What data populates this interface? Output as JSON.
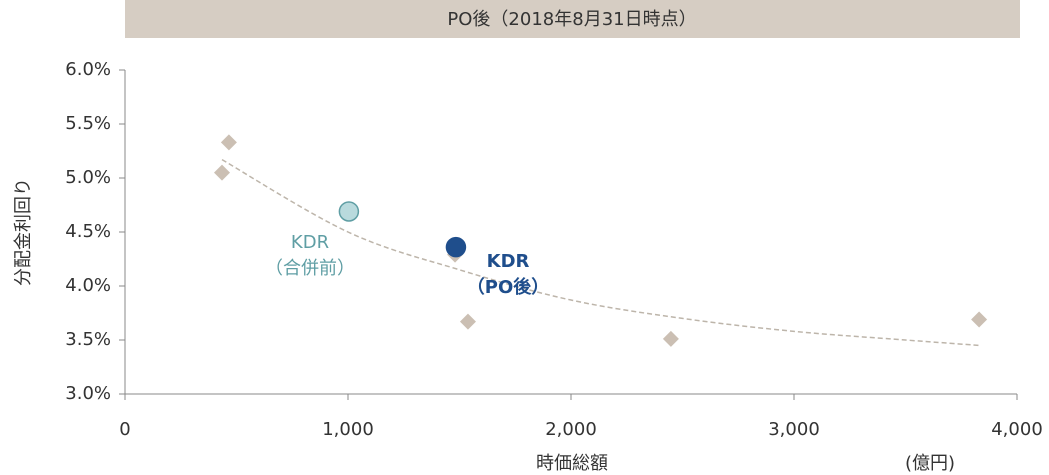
{
  "chart_data": {
    "type": "scatter",
    "title": "PO後（2018年8月31日時点）",
    "ylabel": "分配金利回り",
    "xlabel": "時価総額",
    "xunit": "(億円)",
    "xlim": [
      0,
      4000
    ],
    "ylim": [
      3.0,
      6.0
    ],
    "xticks": [
      0,
      {
        "value": 1000,
        "label": "1,000"
      },
      {
        "value": 2000,
        "label": "2,000"
      },
      {
        "value": 3000,
        "label": "3,000"
      },
      {
        "value": 4000,
        "label": "4,000"
      }
    ],
    "yticks": [
      {
        "value": 3.0,
        "label": "3.0%"
      },
      {
        "value": 3.5,
        "label": "3.5%"
      },
      {
        "value": 4.0,
        "label": "4.0%"
      },
      {
        "value": 4.5,
        "label": "4.5%"
      },
      {
        "value": 5.0,
        "label": "5.0%"
      },
      {
        "value": 5.5,
        "label": "5.5%"
      },
      {
        "value": 6.0,
        "label": "6.0%"
      }
    ],
    "series": [
      {
        "marker": "diamond",
        "color": "#cbbfb3",
        "x": [
          435,
          466,
          1480,
          1538,
          2448,
          3830
        ],
        "values": [
          5.05,
          5.33,
          4.29,
          3.67,
          3.51,
          3.69
        ]
      },
      {
        "marker": "circle",
        "color": "#b9dadd",
        "stroke": "#5f9ea4",
        "x": [
          1004
        ],
        "values": [
          4.69
        ]
      },
      {
        "marker": "circle",
        "color": "#1f4e8c",
        "stroke": "#1f4e8c",
        "x": [
          1484
        ],
        "values": [
          4.36
        ]
      }
    ],
    "trendline": {
      "color": "#bdb5aa",
      "x": [
        435,
        1000,
        1500,
        2000,
        2500,
        3000,
        3500,
        3830
      ],
      "values": [
        5.17,
        4.5,
        4.15,
        3.87,
        3.7,
        3.58,
        3.5,
        3.45
      ]
    },
    "annotations": [
      {
        "lines": [
          "KDR",
          "（合併前）"
        ],
        "color": "#5f9ea4"
      },
      {
        "lines": [
          "KDR",
          "（PO後）"
        ],
        "color": "#1f4e8c"
      }
    ]
  }
}
